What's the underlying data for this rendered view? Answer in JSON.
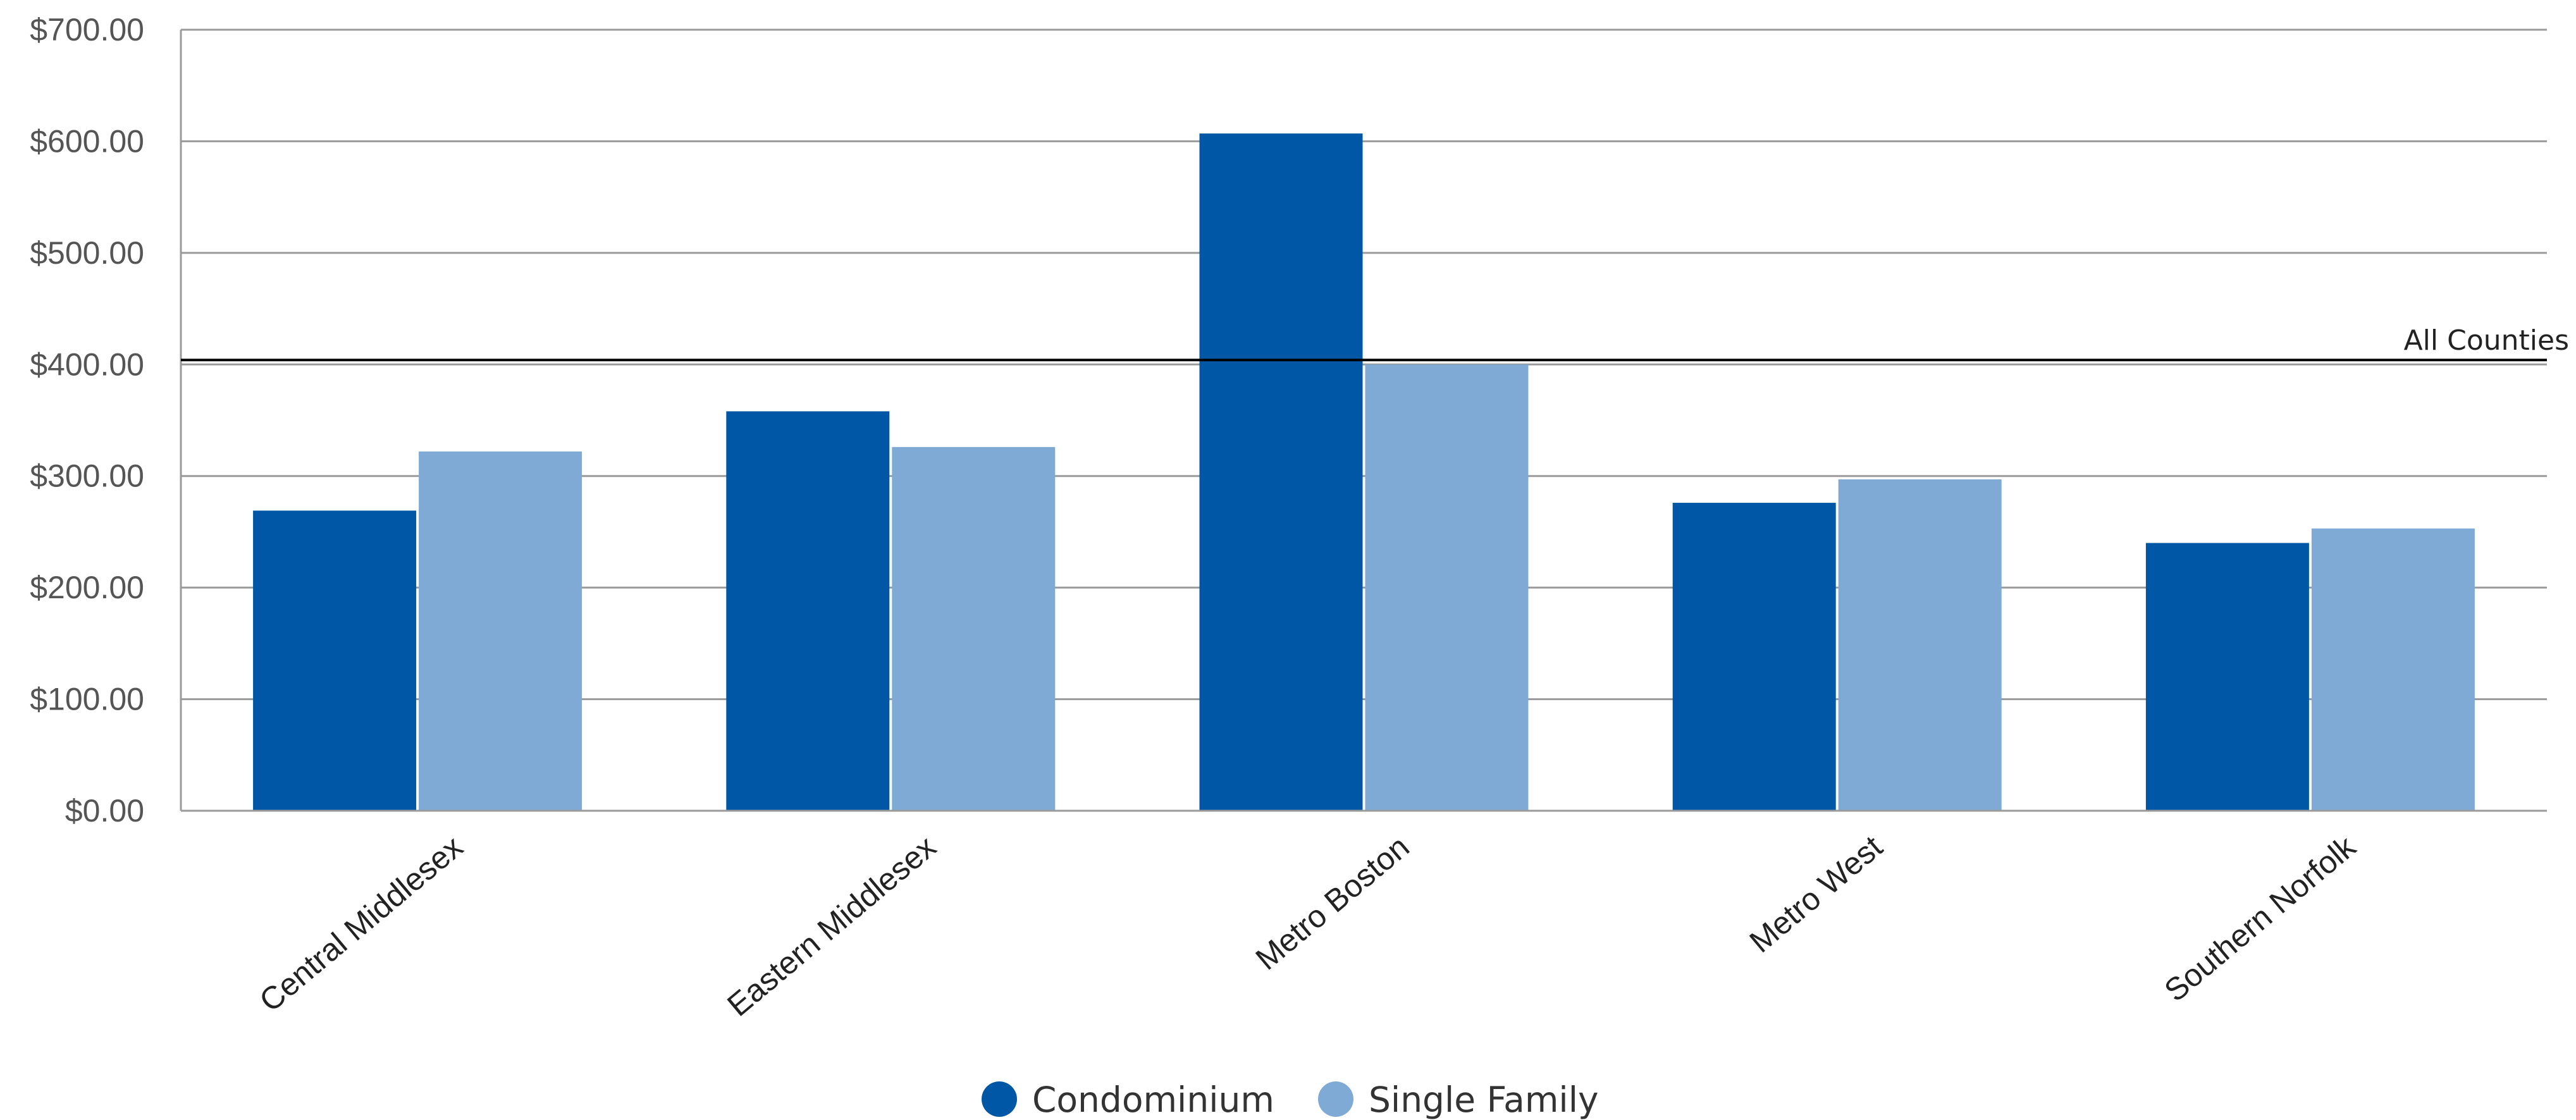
{
  "chart_data": {
    "type": "bar",
    "title": "",
    "xlabel": "",
    "ylabel": "",
    "categories": [
      "Central Middlesex",
      "Eastern Middlesex",
      "Metro Boston",
      "Metro West",
      "Southern Norfolk"
    ],
    "series": [
      {
        "name": "Condominium",
        "color": "#0057a6",
        "values": [
          269,
          358,
          607,
          276,
          240
        ]
      },
      {
        "name": "Single Family",
        "color": "#7eaad5",
        "values": [
          322,
          326,
          400,
          297,
          253
        ]
      }
    ],
    "reference_line": {
      "label": "All Counties",
      "value": 404,
      "color": "#000000"
    },
    "ylim": [
      0,
      700
    ],
    "yticks": [
      0,
      100,
      200,
      300,
      400,
      500,
      600,
      700
    ],
    "ytick_labels": [
      "$0.00",
      "$100.00",
      "$200.00",
      "$300.00",
      "$400.00",
      "$500.00",
      "$600.00",
      "$700.00"
    ],
    "grid": true,
    "legend_position": "bottom-center"
  }
}
